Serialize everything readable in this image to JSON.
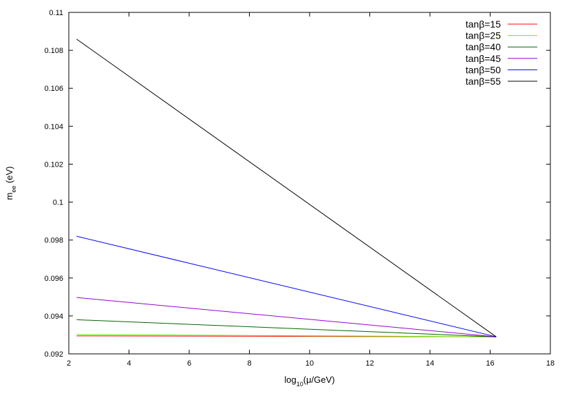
{
  "chart_data": {
    "type": "line",
    "xlabel": {
      "base": "log",
      "sub": "10",
      "rest": "(μ/GeV)"
    },
    "ylabel": {
      "base": "m",
      "sub": "ee",
      "rest": " (eV)"
    },
    "xlim": [
      2,
      18
    ],
    "ylim": [
      0.092,
      0.11
    ],
    "xticks": [
      "2",
      "4",
      "6",
      "8",
      "10",
      "12",
      "14",
      "16",
      "18"
    ],
    "yticks": [
      "0.092",
      "0.094",
      "0.096",
      "0.098",
      "0.1",
      "0.102",
      "0.104",
      "0.106",
      "0.108",
      "0.11"
    ],
    "legend_position": "top-right",
    "grid": false,
    "series": [
      {
        "name": "tanβ=15",
        "color": "#ff0000",
        "x": [
          2.26,
          16.2
        ],
        "y": [
          0.09295,
          0.0929
        ]
      },
      {
        "name": "tanβ=25",
        "color": "#66ee00",
        "x": [
          2.26,
          16.2
        ],
        "y": [
          0.09302,
          0.0929
        ]
      },
      {
        "name": "tanβ=40",
        "color": "#006400",
        "x": [
          2.26,
          16.2
        ],
        "y": [
          0.0938,
          0.0929
        ]
      },
      {
        "name": "tanβ=45",
        "color": "#9400d3",
        "x": [
          2.26,
          16.2
        ],
        "y": [
          0.09497,
          0.0929
        ]
      },
      {
        "name": "tanβ=50",
        "color": "#0000ff",
        "x": [
          2.26,
          16.2
        ],
        "y": [
          0.0982,
          0.0929
        ]
      },
      {
        "name": "tanβ=55",
        "color": "#000000",
        "x": [
          2.26,
          16.2
        ],
        "y": [
          0.10859,
          0.0929
        ]
      }
    ]
  }
}
